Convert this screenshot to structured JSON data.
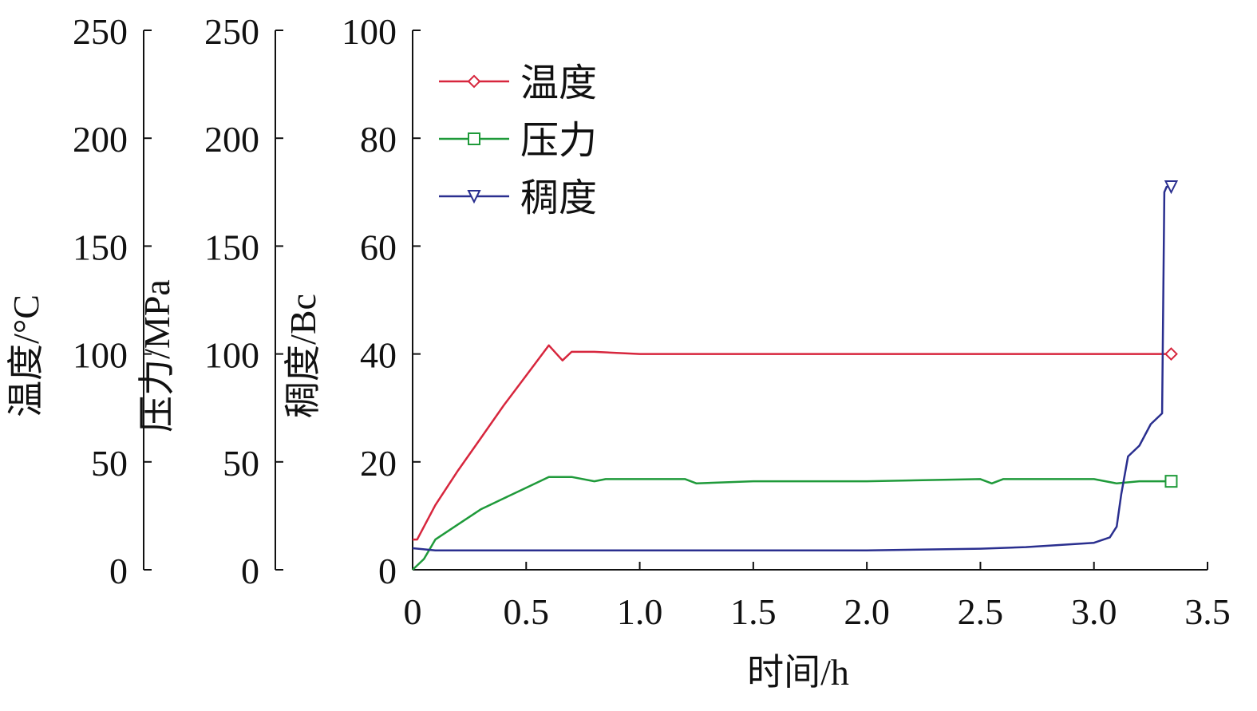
{
  "chart_data": {
    "type": "line",
    "title": "",
    "xlabel": "时间/h",
    "xlim": [
      0,
      3.5
    ],
    "x_ticks": [
      "0",
      "0.5",
      "1.0",
      "1.5",
      "2.0",
      "2.5",
      "3.0",
      "3.5"
    ],
    "grid": false,
    "legend_position": "top-left",
    "axes": [
      {
        "id": "temperature",
        "label": "温度/°C",
        "ylim": [
          0,
          250
        ],
        "ticks": [
          "0",
          "50",
          "100",
          "150",
          "200",
          "250"
        ]
      },
      {
        "id": "pressure",
        "label": "压力/MPa",
        "ylim": [
          0,
          250
        ],
        "ticks": [
          "0",
          "50",
          "100",
          "150",
          "200",
          "250"
        ]
      },
      {
        "id": "consistency",
        "label": "稠度/Bc",
        "ylim": [
          0,
          100
        ],
        "ticks": [
          "0",
          "20",
          "40",
          "60",
          "80",
          "100"
        ]
      }
    ],
    "series": [
      {
        "name": "温度",
        "axis": "temperature",
        "color": "#d7263d",
        "marker": "diamond",
        "x": [
          0,
          0.02,
          0.1,
          0.2,
          0.3,
          0.4,
          0.5,
          0.6,
          0.66,
          0.7,
          0.8,
          1.0,
          1.5,
          2.0,
          2.5,
          3.0,
          3.3,
          3.34
        ],
        "y": [
          14,
          14,
          30,
          46,
          61,
          76,
          90,
          104,
          97,
          101,
          101,
          100,
          100,
          100,
          100,
          100,
          100,
          100
        ]
      },
      {
        "name": "压力",
        "axis": "pressure",
        "color": "#1f9a3a",
        "marker": "square",
        "x": [
          0,
          0.05,
          0.1,
          0.2,
          0.3,
          0.4,
          0.5,
          0.6,
          0.65,
          0.7,
          0.8,
          0.85,
          1.0,
          1.2,
          1.25,
          1.5,
          2.0,
          2.5,
          2.55,
          2.6,
          3.0,
          3.1,
          3.2,
          3.3,
          3.34
        ],
        "y": [
          0,
          5,
          14,
          21,
          28,
          33,
          38,
          43,
          43,
          43,
          41,
          42,
          42,
          42,
          40,
          41,
          41,
          42,
          40,
          42,
          42,
          40,
          41,
          41,
          41
        ]
      },
      {
        "name": "稠度",
        "axis": "consistency",
        "color": "#2a2f8f",
        "marker": "triangle-down",
        "x": [
          0,
          0.1,
          0.3,
          0.5,
          1.0,
          1.5,
          2.0,
          2.5,
          2.7,
          3.0,
          3.07,
          3.1,
          3.12,
          3.15,
          3.2,
          3.25,
          3.3,
          3.31,
          3.32,
          3.34
        ],
        "y": [
          4,
          3.6,
          3.6,
          3.6,
          3.6,
          3.6,
          3.6,
          3.9,
          4.2,
          5,
          6,
          8,
          14,
          21,
          23,
          27,
          29,
          70,
          71,
          71
        ]
      }
    ]
  }
}
